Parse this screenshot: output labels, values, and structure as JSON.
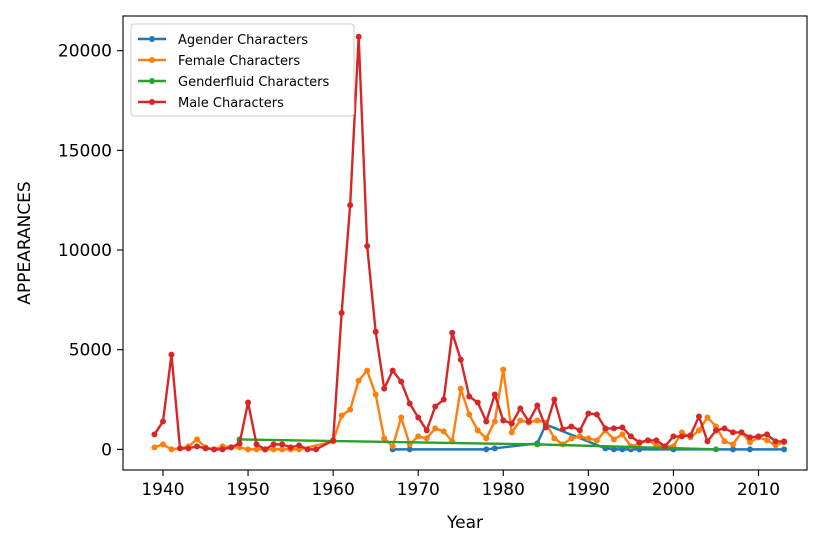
{
  "chart_data": {
    "type": "line",
    "title": "",
    "xlabel": "Year",
    "ylabel": "APPEARANCES",
    "xlim": [
      1935.3,
      2015.7
    ],
    "ylim": [
      -1035,
      21740
    ],
    "xticks": [
      1940,
      1950,
      1960,
      1970,
      1980,
      1990,
      2000,
      2010
    ],
    "yticks": [
      0,
      5000,
      10000,
      15000,
      20000
    ],
    "grid": false,
    "legend_position": "top-left",
    "series": [
      {
        "name": "Agender Characters",
        "color": "#1f77b4",
        "points": [
          [
            1967,
            0
          ],
          [
            1969,
            0
          ],
          [
            1978,
            0
          ],
          [
            1979,
            50
          ],
          [
            1984,
            300
          ],
          [
            1985,
            1250
          ],
          [
            1992,
            50
          ],
          [
            1993,
            0
          ],
          [
            1994,
            0
          ],
          [
            1995,
            0
          ],
          [
            1996,
            0
          ],
          [
            2000,
            0
          ],
          [
            2007,
            0
          ],
          [
            2009,
            0
          ],
          [
            2013,
            0
          ]
        ]
      },
      {
        "name": "Female Characters",
        "color": "#ff7f0e",
        "points": [
          [
            1939,
            100
          ],
          [
            1940,
            250
          ],
          [
            1941,
            0
          ],
          [
            1942,
            50
          ],
          [
            1943,
            150
          ],
          [
            1944,
            500
          ],
          [
            1945,
            100
          ],
          [
            1946,
            0
          ],
          [
            1947,
            150
          ],
          [
            1948,
            100
          ],
          [
            1949,
            100
          ],
          [
            1950,
            0
          ],
          [
            1951,
            0
          ],
          [
            1952,
            0
          ],
          [
            1953,
            0
          ],
          [
            1954,
            0
          ],
          [
            1955,
            0
          ],
          [
            1956,
            0
          ],
          [
            1960,
            400
          ],
          [
            1961,
            1700
          ],
          [
            1962,
            2000
          ],
          [
            1963,
            3450
          ],
          [
            1964,
            3950
          ],
          [
            1965,
            2750
          ],
          [
            1966,
            550
          ],
          [
            1967,
            150
          ],
          [
            1968,
            1600
          ],
          [
            1969,
            250
          ],
          [
            1970,
            650
          ],
          [
            1971,
            550
          ],
          [
            1972,
            1050
          ],
          [
            1973,
            900
          ],
          [
            1974,
            400
          ],
          [
            1975,
            3050
          ],
          [
            1976,
            1750
          ],
          [
            1977,
            950
          ],
          [
            1978,
            550
          ],
          [
            1979,
            1400
          ],
          [
            1980,
            4000
          ],
          [
            1981,
            850
          ],
          [
            1982,
            1450
          ],
          [
            1983,
            1350
          ],
          [
            1984,
            1450
          ],
          [
            1985,
            1350
          ],
          [
            1986,
            550
          ],
          [
            1987,
            250
          ],
          [
            1988,
            550
          ],
          [
            1989,
            650
          ],
          [
            1990,
            550
          ],
          [
            1991,
            450
          ],
          [
            1992,
            950
          ],
          [
            1993,
            500
          ],
          [
            1994,
            750
          ],
          [
            1995,
            150
          ],
          [
            1996,
            300
          ],
          [
            1997,
            450
          ],
          [
            1998,
            200
          ],
          [
            1999,
            150
          ],
          [
            2000,
            150
          ],
          [
            2001,
            850
          ],
          [
            2002,
            600
          ],
          [
            2003,
            950
          ],
          [
            2004,
            1600
          ],
          [
            2005,
            1150
          ],
          [
            2006,
            400
          ],
          [
            2007,
            250
          ],
          [
            2008,
            850
          ],
          [
            2009,
            350
          ],
          [
            2010,
            600
          ],
          [
            2011,
            450
          ],
          [
            2012,
            200
          ],
          [
            2013,
            350
          ]
        ]
      },
      {
        "name": "Genderfluid Characters",
        "color": "#2ca02c",
        "points": [
          [
            1949,
            500
          ],
          [
            1984,
            250
          ],
          [
            2005,
            0
          ]
        ]
      },
      {
        "name": "Male Characters",
        "color": "#d62728",
        "points": [
          [
            1939,
            750
          ],
          [
            1940,
            1400
          ],
          [
            1941,
            4750
          ],
          [
            1942,
            50
          ],
          [
            1943,
            50
          ],
          [
            1944,
            150
          ],
          [
            1945,
            50
          ],
          [
            1946,
            0
          ],
          [
            1947,
            0
          ],
          [
            1948,
            100
          ],
          [
            1949,
            300
          ],
          [
            1950,
            2350
          ],
          [
            1951,
            250
          ],
          [
            1952,
            0
          ],
          [
            1953,
            250
          ],
          [
            1954,
            250
          ],
          [
            1955,
            100
          ],
          [
            1956,
            200
          ],
          [
            1957,
            0
          ],
          [
            1958,
            0
          ],
          [
            1960,
            450
          ],
          [
            1961,
            6850
          ],
          [
            1962,
            12250
          ],
          [
            1963,
            20700
          ],
          [
            1964,
            10200
          ],
          [
            1965,
            5900
          ],
          [
            1966,
            3050
          ],
          [
            1967,
            3950
          ],
          [
            1968,
            3400
          ],
          [
            1969,
            2300
          ],
          [
            1970,
            1600
          ],
          [
            1971,
            950
          ],
          [
            1972,
            2150
          ],
          [
            1973,
            2500
          ],
          [
            1974,
            5850
          ],
          [
            1975,
            4500
          ],
          [
            1976,
            2650
          ],
          [
            1977,
            2350
          ],
          [
            1978,
            1400
          ],
          [
            1979,
            2750
          ],
          [
            1980,
            1450
          ],
          [
            1981,
            1300
          ],
          [
            1982,
            2050
          ],
          [
            1983,
            1400
          ],
          [
            1984,
            2200
          ],
          [
            1985,
            1100
          ],
          [
            1986,
            2500
          ],
          [
            1987,
            1000
          ],
          [
            1988,
            1150
          ],
          [
            1989,
            950
          ],
          [
            1990,
            1800
          ],
          [
            1991,
            1750
          ],
          [
            1992,
            1050
          ],
          [
            1993,
            1050
          ],
          [
            1994,
            1100
          ],
          [
            1995,
            650
          ],
          [
            1996,
            350
          ],
          [
            1997,
            450
          ],
          [
            1998,
            450
          ],
          [
            1999,
            150
          ],
          [
            2000,
            650
          ],
          [
            2001,
            650
          ],
          [
            2002,
            700
          ],
          [
            2003,
            1650
          ],
          [
            2004,
            400
          ],
          [
            2005,
            950
          ],
          [
            2006,
            1050
          ],
          [
            2007,
            850
          ],
          [
            2008,
            850
          ],
          [
            2009,
            600
          ],
          [
            2010,
            650
          ],
          [
            2011,
            750
          ],
          [
            2012,
            400
          ],
          [
            2013,
            400
          ]
        ]
      }
    ]
  }
}
